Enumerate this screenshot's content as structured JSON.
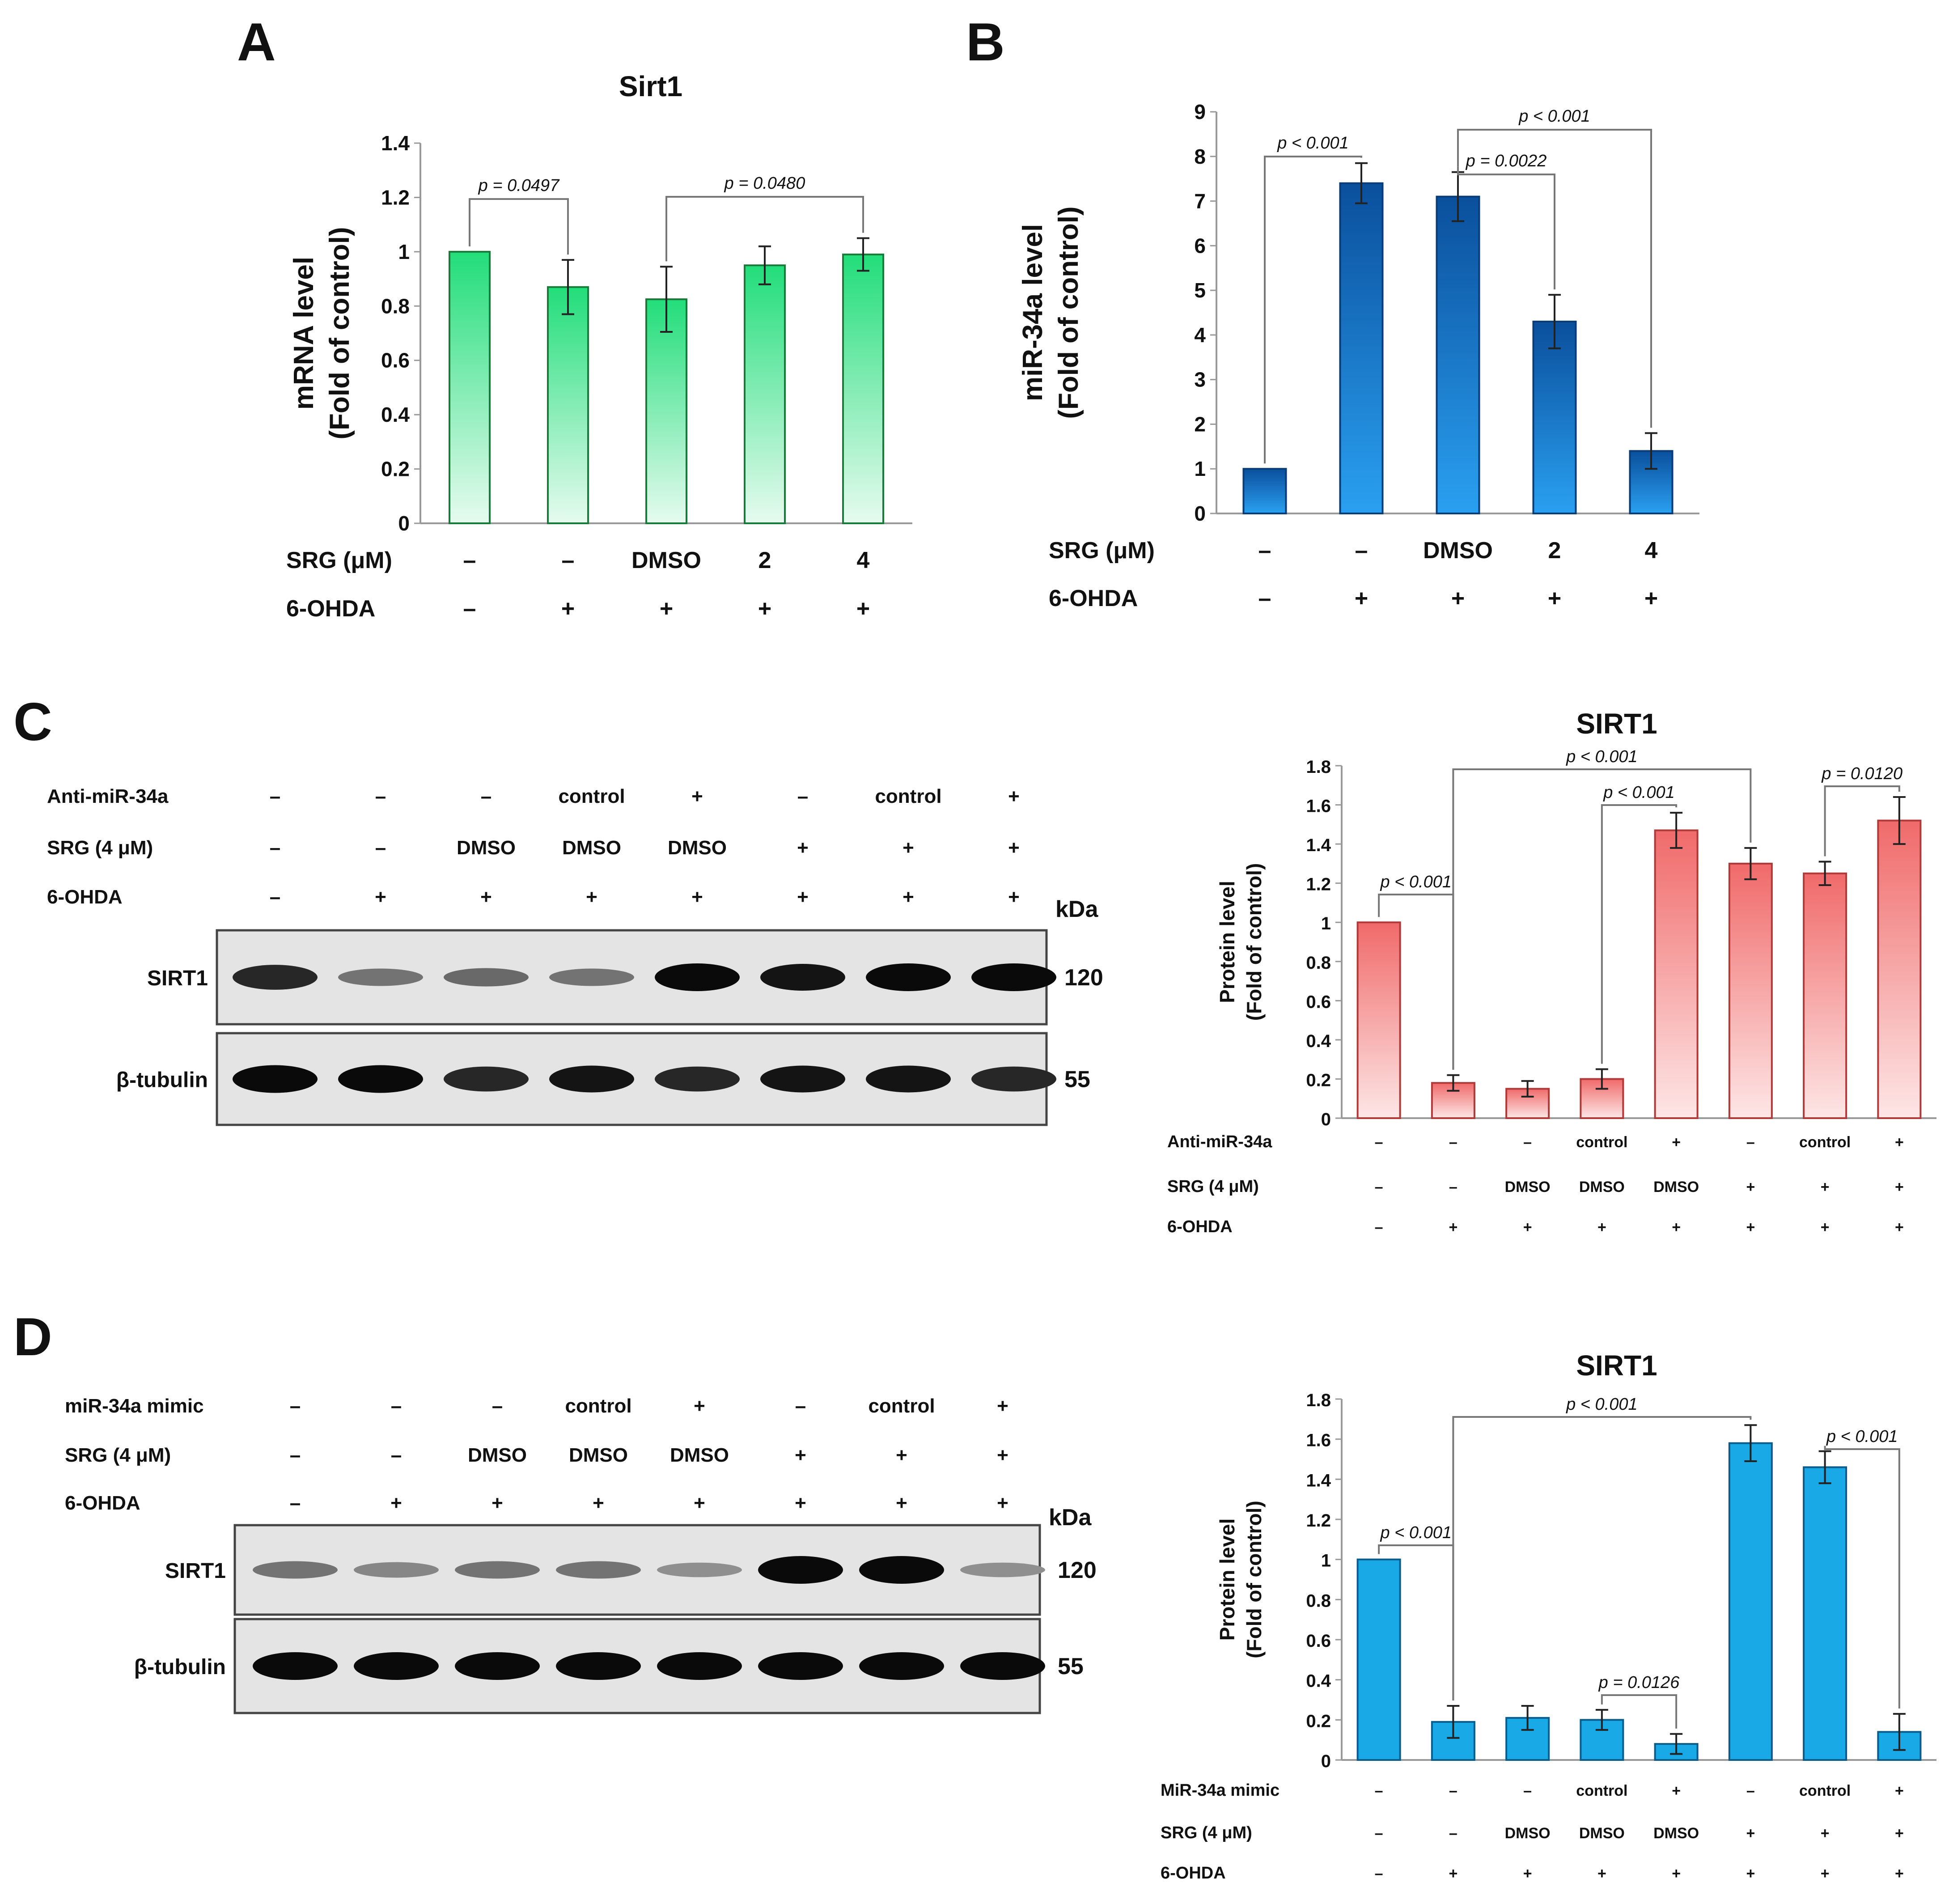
{
  "panels": {
    "A": "A",
    "B": "B",
    "C": "C",
    "D": "D"
  },
  "blot_c": {
    "rows": [
      {
        "label": "Anti-miR-34a",
        "values": [
          "–",
          "–",
          "–",
          "control",
          "+",
          "–",
          "control",
          "+"
        ]
      },
      {
        "label": "SRG (4 μM)",
        "values": [
          "–",
          "–",
          "DMSO",
          "DMSO",
          "DMSO",
          "+",
          "+",
          "+"
        ]
      },
      {
        "label": "6-OHDA",
        "values": [
          "–",
          "+",
          "+",
          "+",
          "+",
          "+",
          "+",
          "+"
        ]
      }
    ],
    "kda_label": "kDa",
    "bands": [
      {
        "label": "SIRT1",
        "kda": "120",
        "intensity": [
          0.85,
          0.45,
          0.5,
          0.45,
          1.0,
          0.95,
          1.0,
          1.0
        ]
      },
      {
        "label": "β-tubulin",
        "kda": "55",
        "intensity": [
          1.0,
          1.0,
          0.85,
          0.95,
          0.85,
          0.95,
          0.95,
          0.85
        ]
      }
    ]
  },
  "blot_d": {
    "rows": [
      {
        "label": "miR-34a mimic",
        "values": [
          "–",
          "–",
          "–",
          "control",
          "+",
          "–",
          "control",
          "+"
        ]
      },
      {
        "label": "SRG (4 μM)",
        "values": [
          "–",
          "–",
          "DMSO",
          "DMSO",
          "DMSO",
          "+",
          "+",
          "+"
        ]
      },
      {
        "label": "6-OHDA",
        "values": [
          "–",
          "+",
          "+",
          "+",
          "+",
          "+",
          "+",
          "+"
        ]
      }
    ],
    "kda_label": "kDa",
    "bands": [
      {
        "label": "SIRT1",
        "kda": "120",
        "intensity": [
          0.45,
          0.35,
          0.45,
          0.45,
          0.3,
          1.0,
          1.0,
          0.3
        ]
      },
      {
        "label": "β-tubulin",
        "kda": "55",
        "intensity": [
          1.0,
          1.0,
          1.0,
          1.0,
          1.0,
          1.0,
          1.0,
          1.0
        ]
      }
    ]
  },
  "colors": {
    "A_top": "#22dd7a",
    "A_bottom": "#e6fbef",
    "B_top": "#0a4f9c",
    "B_bottom": "#2aa0f0",
    "C_top": "#f06a6a",
    "C_bottom": "#fde6e6",
    "D_fill": "#19a9e6"
  },
  "chart_data": [
    {
      "type": "bar",
      "panel": "A",
      "title": "Sirt1",
      "ylabel": [
        "mRNA level",
        "(Fold of control)"
      ],
      "ylim": [
        0,
        1.4
      ],
      "yticks": [
        "0",
        "0.2",
        "0.4",
        "0.6",
        "0.8",
        "1",
        "1.2",
        "1.4"
      ],
      "values": [
        1.0,
        0.87,
        0.825,
        0.95,
        0.99
      ],
      "errors": [
        0,
        0.1,
        0.12,
        0.07,
        0.06
      ],
      "conditions": [
        {
          "label": "SRG (μM)",
          "values": [
            "–",
            "–",
            "DMSO",
            "2",
            "4"
          ]
        },
        {
          "label": "6-OHDA",
          "values": [
            "–",
            "+",
            "+",
            "+",
            "+"
          ]
        }
      ],
      "annotations": [
        {
          "text": "p = 0.0497",
          "from": 0,
          "to": 1
        },
        {
          "text": "p = 0.0480",
          "from": 2,
          "to": 4
        }
      ]
    },
    {
      "type": "bar",
      "panel": "B",
      "title": "",
      "ylabel": [
        "miR-34a level",
        "(Fold of control)"
      ],
      "ylim": [
        0,
        9
      ],
      "yticks": [
        "0",
        "1",
        "2",
        "3",
        "4",
        "5",
        "6",
        "7",
        "8",
        "9"
      ],
      "values": [
        1.0,
        7.4,
        7.1,
        4.3,
        1.4
      ],
      "errors": [
        0,
        0.45,
        0.55,
        0.6,
        0.4
      ],
      "conditions": [
        {
          "label": "SRG (μM)",
          "values": [
            "–",
            "–",
            "DMSO",
            "2",
            "4"
          ]
        },
        {
          "label": "6-OHDA",
          "values": [
            "–",
            "+",
            "+",
            "+",
            "+"
          ]
        }
      ],
      "annotations": [
        {
          "text": "p < 0.001",
          "from": 0,
          "to": 1
        },
        {
          "text": "p = 0.0022",
          "from": 2,
          "to": 3
        },
        {
          "text": "p < 0.001",
          "from": 2,
          "to": 4
        }
      ]
    },
    {
      "type": "bar",
      "panel": "C",
      "title": "SIRT1",
      "ylabel": [
        "Protein level",
        "(Fold of control)"
      ],
      "ylim": [
        0,
        1.8
      ],
      "yticks": [
        "0",
        "0.2",
        "0.4",
        "0.6",
        "0.8",
        "1",
        "1.2",
        "1.4",
        "1.6",
        "1.8"
      ],
      "values": [
        1.0,
        0.18,
        0.15,
        0.2,
        1.47,
        1.3,
        1.25,
        1.52
      ],
      "errors": [
        0,
        0.04,
        0.04,
        0.05,
        0.09,
        0.08,
        0.06,
        0.12
      ],
      "conditions": [
        {
          "label": "Anti-miR-34a",
          "values": [
            "–",
            "–",
            "–",
            "control",
            "+",
            "–",
            "control",
            "+"
          ]
        },
        {
          "label": "SRG (4 μM)",
          "values": [
            "–",
            "–",
            "DMSO",
            "DMSO",
            "DMSO",
            "+",
            "+",
            "+"
          ]
        },
        {
          "label": "6-OHDA",
          "values": [
            "–",
            "+",
            "+",
            "+",
            "+",
            "+",
            "+",
            "+"
          ]
        }
      ],
      "annotations": [
        {
          "text": "p < 0.001",
          "from": 0,
          "to": 1
        },
        {
          "text": "p < 0.001",
          "from": 1,
          "to": 5
        },
        {
          "text": "p < 0.001",
          "from": 3,
          "to": 4
        },
        {
          "text": "p = 0.0120",
          "from": 6,
          "to": 7
        }
      ]
    },
    {
      "type": "bar",
      "panel": "D",
      "title": "SIRT1",
      "ylabel": [
        "Protein level",
        "(Fold of control)"
      ],
      "ylim": [
        0,
        1.8
      ],
      "yticks": [
        "0",
        "0.2",
        "0.4",
        "0.6",
        "0.8",
        "1",
        "1.2",
        "1.4",
        "1.6",
        "1.8"
      ],
      "values": [
        1.0,
        0.19,
        0.21,
        0.2,
        0.08,
        1.58,
        1.46,
        0.14
      ],
      "errors": [
        0,
        0.08,
        0.06,
        0.05,
        0.05,
        0.09,
        0.08,
        0.09
      ],
      "conditions": [
        {
          "label": "MiR-34a mimic",
          "values": [
            "–",
            "–",
            "–",
            "control",
            "+",
            "–",
            "control",
            "+"
          ]
        },
        {
          "label": "SRG (4 μM)",
          "values": [
            "–",
            "–",
            "DMSO",
            "DMSO",
            "DMSO",
            "+",
            "+",
            "+"
          ]
        },
        {
          "label": "6-OHDA",
          "values": [
            "–",
            "+",
            "+",
            "+",
            "+",
            "+",
            "+",
            "+"
          ]
        }
      ],
      "annotations": [
        {
          "text": "p < 0.001",
          "from": 0,
          "to": 1
        },
        {
          "text": "p < 0.001",
          "from": 1,
          "to": 5
        },
        {
          "text": "p = 0.0126",
          "from": 3,
          "to": 4
        },
        {
          "text": "p < 0.001",
          "from": 6,
          "to": 7
        }
      ]
    }
  ]
}
